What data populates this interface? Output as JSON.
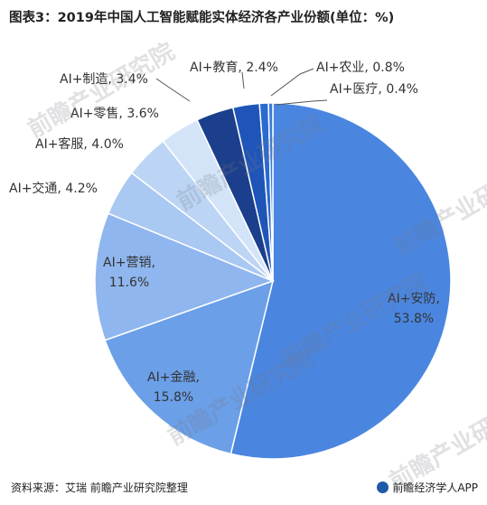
{
  "chart_data": {
    "type": "pie",
    "title": "图表3：2019年中国人工智能赋能实体经济各产业份额(单位：%)",
    "unit": "%",
    "slices": [
      {
        "label": "AI+安防",
        "value": 53.8,
        "color": "#4a86e0",
        "label_text": "AI+安防,",
        "value_text": "53.8%"
      },
      {
        "label": "AI+金融",
        "value": 15.8,
        "color": "#6b9fe8",
        "label_text": "AI+金融,",
        "value_text": "15.8%"
      },
      {
        "label": "AI+营销",
        "value": 11.6,
        "color": "#8fb6ee",
        "label_text": "AI+营销,",
        "value_text": "11.6%"
      },
      {
        "label": "AI+交通",
        "value": 4.2,
        "color": "#a9c8f2",
        "label_text": "AI+交通, 4.2%"
      },
      {
        "label": "AI+客服",
        "value": 4.0,
        "color": "#bcd5f5",
        "label_text": "AI+客服, 4.0%"
      },
      {
        "label": "AI+零售",
        "value": 3.6,
        "color": "#d3e4f9",
        "label_text": "AI+零售, 3.6%"
      },
      {
        "label": "AI+制造",
        "value": 3.4,
        "color": "#1b3f8c",
        "label_text": "AI+制造, 3.4%"
      },
      {
        "label": "AI+教育",
        "value": 2.4,
        "color": "#1f55b8",
        "label_text": "AI+教育, 2.4%"
      },
      {
        "label": "AI+农业",
        "value": 0.8,
        "color": "#2b6ad0",
        "label_text": "AI+农业, 0.8%"
      },
      {
        "label": "AI+医疗",
        "value": 0.4,
        "color": "#3a7bdc",
        "label_text": "AI+医疗, 0.4%"
      }
    ]
  },
  "source_text": "资料来源：艾瑞 前瞻产业研究院整理",
  "brand_text": "前瞻经济学人APP",
  "watermark_text": "前瞻产业研究院",
  "colors": {
    "leader_line": "#555555",
    "slice_stroke": "#ffffff"
  }
}
